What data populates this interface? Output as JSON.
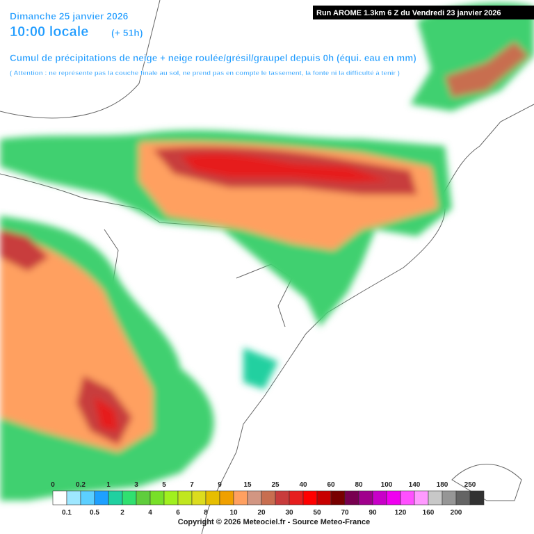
{
  "header": {
    "date": "Dimanche 25 janvier 2026",
    "time": "10:00 locale",
    "lead": "(+ 51h)",
    "title": "Cumul de précipitations de neige + neige roulée/grésil/graupel depuis 0h (équi. eau en mm)",
    "warning": "( Attention : ne représente pas la couche finale au sol, ne prend pas en compte le tassement, la fonte ni la difficulté à tenir )",
    "run": "Run AROME 1.3km 6 Z du Vendredi 23 janvier 2026"
  },
  "legend": {
    "levels": [
      0,
      0.1,
      0.2,
      0.5,
      1,
      2,
      3,
      4,
      5,
      6,
      7,
      8,
      9,
      10,
      15,
      20,
      25,
      30,
      40,
      50,
      60,
      70,
      80,
      90,
      100,
      120,
      140,
      160,
      180,
      200,
      250
    ],
    "colors": [
      "#ffffff",
      "#9ee7ff",
      "#5ccfff",
      "#1ea0ff",
      "#20d0a0",
      "#30e070",
      "#5fcd3c",
      "#78e028",
      "#a0f01e",
      "#c0e61e",
      "#dcdc1e",
      "#e6be00",
      "#f0a000",
      "#ffa060",
      "#d29682",
      "#c86e50",
      "#c83c3c",
      "#e61e1e",
      "#ff0000",
      "#c80000",
      "#780000",
      "#780050",
      "#a0008c",
      "#c800c8",
      "#f000f0",
      "#ff50ff",
      "#ff9aff",
      "#c8c8c8",
      "#969696",
      "#646464",
      "#323232"
    ]
  },
  "footer": {
    "copyright": "Copyright © 2026 Meteociel.fr - Source Meteo-France"
  }
}
